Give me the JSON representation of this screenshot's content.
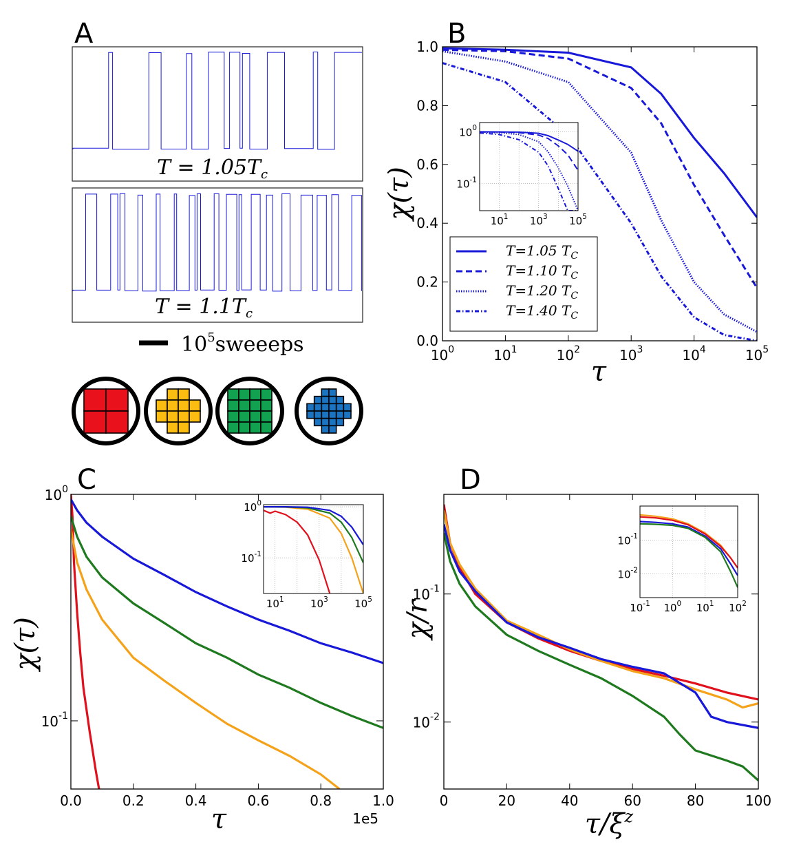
{
  "colors": {
    "blue": "#1818d8",
    "green": "#1f7a1f",
    "orange": "#f5a21b",
    "red": "#e0101c",
    "q_red": "#e8111c",
    "q_yellow": "#fbbd11",
    "q_green": "#12a151",
    "q_blue": "#1a74c2"
  },
  "panels": {
    "A": {
      "label": "A",
      "trace1_label": "T = 1.05T",
      "trace1_sub": "c",
      "trace2_label": "T = 1.1T",
      "trace2_sub": "c",
      "scale_base": "10",
      "scale_exp": "5",
      "scale_word": "sweeeps"
    },
    "B": {
      "label": "B"
    },
    "C": {
      "label": "C"
    },
    "D": {
      "label": "D"
    }
  },
  "chart_data": [
    {
      "id": "B",
      "type": "line",
      "xscale": "log",
      "xlim": [
        1,
        100000
      ],
      "ylim": [
        0.0,
        1.0
      ],
      "xlabel": "τ",
      "ylabel": "χ(τ)",
      "x_ticks": [
        {
          "base": "10",
          "exp": "0"
        },
        {
          "base": "10",
          "exp": "1"
        },
        {
          "base": "10",
          "exp": "2"
        },
        {
          "base": "10",
          "exp": "3"
        },
        {
          "base": "10",
          "exp": "4"
        },
        {
          "base": "10",
          "exp": "5"
        }
      ],
      "y_ticks": [
        "0.0",
        "0.2",
        "0.4",
        "0.6",
        "0.8",
        "1.0"
      ],
      "legend_position": "lower-left",
      "series": [
        {
          "name": "T=1.05 T",
          "sub": "C",
          "style": "solid",
          "x": [
            1,
            10,
            100,
            1000,
            3000,
            10000,
            30000,
            100000
          ],
          "y": [
            0.995,
            0.99,
            0.98,
            0.93,
            0.84,
            0.69,
            0.57,
            0.42
          ]
        },
        {
          "name": "T=1.10 T",
          "sub": "C",
          "style": "dashed",
          "x": [
            1,
            10,
            100,
            1000,
            3000,
            10000,
            30000,
            100000
          ],
          "y": [
            0.99,
            0.985,
            0.96,
            0.86,
            0.74,
            0.53,
            0.36,
            0.18
          ]
        },
        {
          "name": "T=1.20 T",
          "sub": "C",
          "style": "dotted",
          "x": [
            1,
            10,
            100,
            1000,
            3000,
            10000,
            30000,
            100000
          ],
          "y": [
            0.985,
            0.95,
            0.88,
            0.64,
            0.41,
            0.2,
            0.09,
            0.03
          ]
        },
        {
          "name": "T=1.40 T",
          "sub": "C",
          "style": "dashdot",
          "x": [
            1,
            10,
            100,
            1000,
            3000,
            10000,
            30000,
            100000
          ],
          "y": [
            0.945,
            0.88,
            0.7,
            0.4,
            0.22,
            0.08,
            0.02,
            0.0
          ]
        }
      ],
      "inset": {
        "xscale": "log",
        "yscale": "log",
        "xlim": [
          1,
          100000
        ],
        "ylim": [
          0.03,
          1.5
        ],
        "x_ticks": [
          {
            "base": "10",
            "exp": "1"
          },
          {
            "base": "10",
            "exp": "3"
          },
          {
            "base": "10",
            "exp": "5"
          }
        ],
        "y_ticks": [
          {
            "base": "10",
            "exp": "0"
          },
          {
            "base": "10",
            "exp": "-1"
          }
        ]
      }
    },
    {
      "id": "C",
      "type": "line",
      "yscale": "log",
      "xlim": [
        0,
        1.0
      ],
      "ylim": [
        0.05,
        1.0
      ],
      "xlabel": "τ",
      "ylabel": "χ(τ)",
      "x_multiplier": "1e5",
      "x_ticks": [
        "0.0",
        "0.2",
        "0.4",
        "0.6",
        "0.8",
        "1.0"
      ],
      "y_ticks": [
        {
          "base": "10",
          "exp": "0"
        },
        {
          "base": "10",
          "exp": "-1"
        }
      ],
      "series": [
        {
          "name": "2x2",
          "color": "red",
          "x": [
            0,
            0.005,
            0.01,
            0.02,
            0.03,
            0.04,
            0.06,
            0.08,
            0.09
          ],
          "y": [
            1.0,
            0.8,
            0.5,
            0.3,
            0.2,
            0.14,
            0.09,
            0.06,
            0.05
          ]
        },
        {
          "name": "cross-4",
          "color": "orange",
          "x": [
            0,
            0.02,
            0.05,
            0.1,
            0.2,
            0.3,
            0.4,
            0.5,
            0.6,
            0.7,
            0.8,
            0.86
          ],
          "y": [
            0.7,
            0.5,
            0.38,
            0.28,
            0.19,
            0.15,
            0.12,
            0.097,
            0.082,
            0.07,
            0.058,
            0.05
          ]
        },
        {
          "name": "4x4",
          "color": "green",
          "x": [
            0,
            0.02,
            0.05,
            0.1,
            0.2,
            0.3,
            0.4,
            0.5,
            0.6,
            0.7,
            0.8,
            0.9,
            1.0
          ],
          "y": [
            0.8,
            0.65,
            0.53,
            0.43,
            0.33,
            0.27,
            0.22,
            0.19,
            0.16,
            0.14,
            0.12,
            0.105,
            0.093
          ]
        },
        {
          "name": "cross-6",
          "color": "blue",
          "x": [
            0,
            0.02,
            0.05,
            0.1,
            0.2,
            0.3,
            0.4,
            0.5,
            0.6,
            0.7,
            0.8,
            0.9,
            1.0
          ],
          "y": [
            0.95,
            0.85,
            0.75,
            0.65,
            0.52,
            0.44,
            0.37,
            0.32,
            0.28,
            0.25,
            0.22,
            0.2,
            0.18
          ]
        }
      ],
      "inset": {
        "xscale": "log",
        "yscale": "log",
        "xlim": [
          3,
          100000
        ],
        "ylim": [
          0.02,
          1.1
        ],
        "x_ticks": [
          {
            "base": "10",
            "exp": "1"
          },
          {
            "base": "10",
            "exp": "3"
          },
          {
            "base": "10",
            "exp": "5"
          }
        ],
        "y_ticks": [
          {
            "base": "10",
            "exp": "0"
          },
          {
            "base": "10",
            "exp": "-1"
          }
        ]
      }
    },
    {
      "id": "D",
      "type": "line",
      "yscale": "log",
      "xlim": [
        0,
        100
      ],
      "ylim": [
        0.003,
        0.6
      ],
      "xlabel": "τ/ξ",
      "xlabel_exp": "z",
      "ylabel": "χ/r",
      "x_ticks": [
        "0",
        "20",
        "40",
        "60",
        "80",
        "100"
      ],
      "y_ticks": [
        {
          "base": "10",
          "exp": "-1"
        },
        {
          "base": "10",
          "exp": "-2"
        }
      ],
      "series": [
        {
          "name": "2x2",
          "color": "red",
          "x": [
            0,
            2,
            5,
            10,
            20,
            30,
            40,
            50,
            60,
            70,
            80,
            90,
            100
          ],
          "y": [
            0.5,
            0.25,
            0.16,
            0.1,
            0.06,
            0.045,
            0.036,
            0.03,
            0.026,
            0.023,
            0.02,
            0.017,
            0.015
          ]
        },
        {
          "name": "cross-4",
          "color": "orange",
          "x": [
            0,
            2,
            5,
            10,
            20,
            30,
            40,
            50,
            60,
            70,
            80,
            90,
            95,
            100
          ],
          "y": [
            0.45,
            0.25,
            0.17,
            0.11,
            0.062,
            0.048,
            0.037,
            0.03,
            0.025,
            0.022,
            0.018,
            0.015,
            0.013,
            0.014
          ]
        },
        {
          "name": "4x4",
          "color": "green",
          "x": [
            0,
            2,
            5,
            10,
            20,
            30,
            40,
            50,
            60,
            70,
            75,
            80,
            90,
            95,
            100
          ],
          "y": [
            0.3,
            0.18,
            0.12,
            0.08,
            0.048,
            0.036,
            0.028,
            0.022,
            0.016,
            0.011,
            0.008,
            0.006,
            0.005,
            0.0045,
            0.0035
          ]
        },
        {
          "name": "cross-6",
          "color": "blue",
          "x": [
            0,
            2,
            5,
            10,
            20,
            30,
            40,
            50,
            60,
            70,
            80,
            85,
            90,
            100
          ],
          "y": [
            0.35,
            0.22,
            0.15,
            0.105,
            0.06,
            0.046,
            0.038,
            0.031,
            0.027,
            0.024,
            0.017,
            0.011,
            0.01,
            0.009
          ]
        }
      ],
      "inset": {
        "xscale": "log",
        "yscale": "log",
        "xlim": [
          0.1,
          100
        ],
        "ylim": [
          0.002,
          1.0
        ],
        "x_ticks": [
          {
            "base": "10",
            "exp": "-1"
          },
          {
            "base": "10",
            "exp": "0"
          },
          {
            "base": "10",
            "exp": "1"
          },
          {
            "base": "10",
            "exp": "2"
          }
        ],
        "y_ticks": [
          {
            "base": "10",
            "exp": "-1"
          },
          {
            "base": "10",
            "exp": "-2"
          }
        ]
      }
    }
  ]
}
